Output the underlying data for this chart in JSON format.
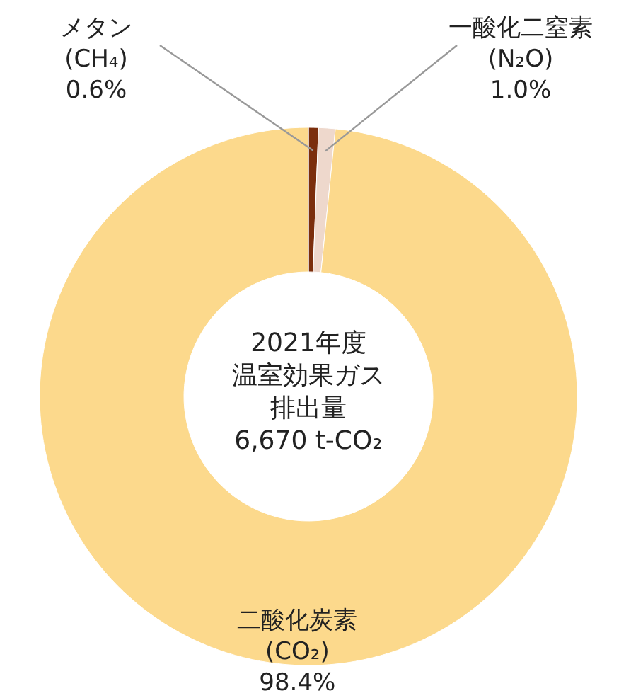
{
  "chart_data": {
    "type": "donut",
    "categories": [
      "メタン (CH₄)",
      "一酸化二窒素 (N₂O)",
      "二酸化炭素 (CO₂)"
    ],
    "values": [
      0.6,
      1.0,
      98.4
    ],
    "colors": [
      "#7b2e0c",
      "#eed8cc",
      "#fcd98c"
    ],
    "value_labels": [
      "0.6%",
      "1.0%",
      "98.4%"
    ],
    "annotations": [
      "2021年度",
      "温室効果ガス",
      "排出量",
      "6,670 t-CO₂"
    ]
  }
}
